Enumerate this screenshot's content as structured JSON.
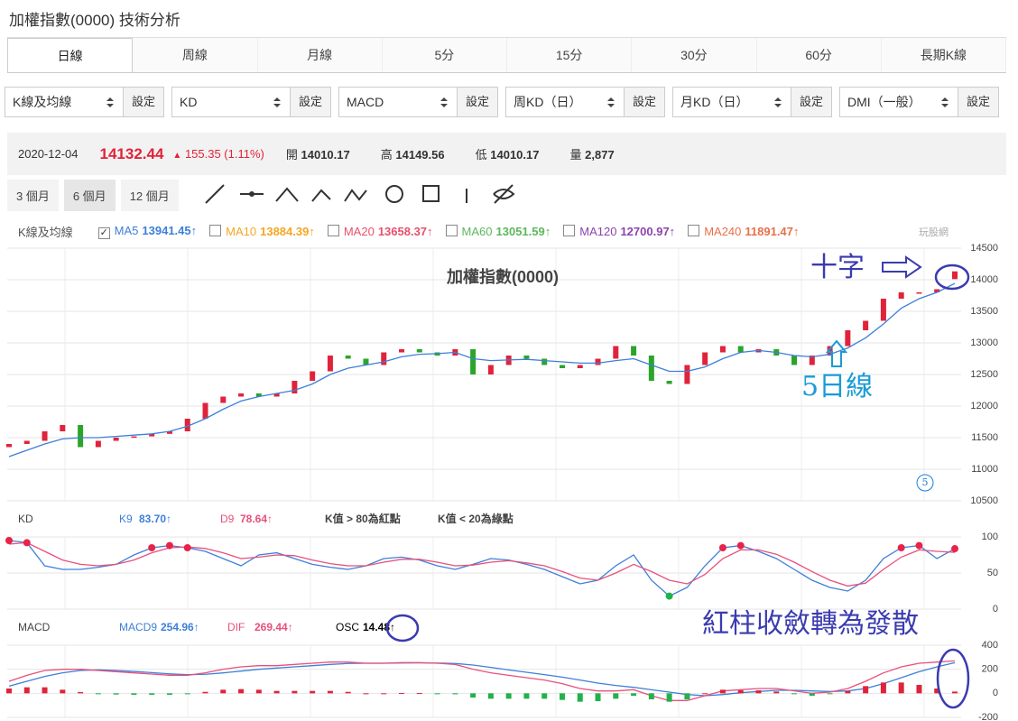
{
  "title": "加權指數(0000) 技術分析",
  "tabs": [
    "日線",
    "周線",
    "月線",
    "5分",
    "15分",
    "30分",
    "60分",
    "長期K線"
  ],
  "selectors": [
    {
      "label": "K線及均線",
      "button": "設定"
    },
    {
      "label": "KD",
      "button": "設定"
    },
    {
      "label": "MACD",
      "button": "設定"
    },
    {
      "label": "周KD（日）",
      "button": "設定"
    },
    {
      "label": "月KD（日）",
      "button": "設定"
    },
    {
      "label": "DMI（一般）",
      "button": "設定"
    }
  ],
  "quote": {
    "date": "2020-12-04",
    "price": "14132.44",
    "change": "155.35 (1.11%)",
    "open_label": "開",
    "open": "14010.17",
    "high_label": "高",
    "high": "14149.56",
    "low_label": "低",
    "low": "14010.17",
    "volume_label": "量",
    "volume": "2,877"
  },
  "periods": [
    "3 個月",
    "6 個月",
    "12 個月"
  ],
  "ma_legend": {
    "label": "K線及均線",
    "items": [
      {
        "name": "MA5",
        "value": "13941.45↑",
        "color": "#3d7fd9",
        "checked": true
      },
      {
        "name": "MA10",
        "value": "13884.39↑",
        "color": "#f5a623",
        "checked": false
      },
      {
        "name": "MA20",
        "value": "13658.37↑",
        "color": "#e8506a",
        "checked": false
      },
      {
        "name": "MA60",
        "value": "13051.59↑",
        "color": "#5cb85c",
        "checked": false
      },
      {
        "name": "MA120",
        "value": "12700.97↑",
        "color": "#8e44ad",
        "checked": false
      },
      {
        "name": "MA240",
        "value": "11891.47↑",
        "color": "#e8704a",
        "checked": false
      }
    ]
  },
  "watermark": "玩股網",
  "chart_data": [
    {
      "type": "candlestick",
      "title": "加權指數(0000)",
      "up_color": "#e0233a",
      "down_color": "#2aa52a",
      "open": [
        11350,
        11400,
        11450,
        11600,
        11700,
        11350,
        11450,
        11500,
        11520,
        11560,
        11600,
        11800,
        12050,
        12150,
        12200,
        12150,
        12200,
        12400,
        12550,
        12800,
        12750,
        12650,
        12850,
        12900,
        12850,
        12800,
        12900,
        12500,
        12650,
        12800,
        12750,
        12650,
        12600,
        12650,
        12750,
        12950,
        12800,
        12400,
        12350,
        12650,
        12850,
        12950,
        12850,
        12900,
        12800,
        12650,
        12800,
        12950,
        13200,
        13350,
        13700,
        13800,
        13800,
        14010.17
      ],
      "close": [
        11400,
        11450,
        11600,
        11700,
        11350,
        11450,
        11500,
        11520,
        11560,
        11600,
        11800,
        12050,
        12150,
        12200,
        12150,
        12200,
        12400,
        12550,
        12800,
        12750,
        12650,
        12850,
        12900,
        12850,
        12800,
        12900,
        12500,
        12650,
        12800,
        12750,
        12650,
        12600,
        12650,
        12750,
        12950,
        12800,
        12400,
        12350,
        12650,
        12850,
        12950,
        12850,
        12900,
        12800,
        12650,
        12800,
        12950,
        13200,
        13350,
        13700,
        13800,
        13800,
        13850,
        14132.44
      ],
      "series": [
        {
          "color": "#3d7fd9",
          "values": [
            11200,
            11300,
            11400,
            11480,
            11500,
            11500,
            11520,
            11540,
            11560,
            11600,
            11680,
            11800,
            11950,
            12080,
            12150,
            12200,
            12250,
            12350,
            12500,
            12600,
            12650,
            12700,
            12780,
            12820,
            12830,
            12850,
            12750,
            12720,
            12730,
            12740,
            12720,
            12700,
            12680,
            12680,
            12720,
            12750,
            12650,
            12550,
            12550,
            12620,
            12750,
            12850,
            12880,
            12850,
            12800,
            12780,
            12820,
            12920,
            13080,
            13300,
            13550,
            13700,
            13800,
            13941.45
          ]
        }
      ],
      "ylim": [
        10500,
        14500
      ],
      "yticks": [
        10500,
        11000,
        11500,
        12000,
        12500,
        13000,
        13500,
        14000,
        14500
      ],
      "grid": true,
      "annotations": [
        "十字",
        "5日線",
        "5"
      ]
    },
    {
      "type": "line",
      "title": "KD",
      "high_dot": 80,
      "low_dot": 20,
      "notes": [
        "K值 > 80為紅點",
        "K值 < 20為綠點"
      ],
      "series": [
        {
          "name": "K9",
          "label": "83.70↑",
          "color": "#3d7fd9",
          "values": [
            95,
            92,
            60,
            55,
            55,
            58,
            62,
            75,
            85,
            88,
            85,
            80,
            70,
            60,
            75,
            78,
            70,
            62,
            58,
            55,
            60,
            70,
            72,
            68,
            60,
            55,
            62,
            70,
            68,
            62,
            55,
            45,
            35,
            40,
            60,
            75,
            40,
            18,
            30,
            60,
            85,
            88,
            80,
            70,
            55,
            40,
            30,
            25,
            40,
            70,
            85,
            88,
            70,
            83.7
          ]
        },
        {
          "name": "D9",
          "label": "78.64↑",
          "color": "#e8507a",
          "values": [
            90,
            92,
            80,
            68,
            62,
            60,
            62,
            68,
            78,
            85,
            86,
            84,
            78,
            70,
            72,
            75,
            74,
            68,
            63,
            60,
            60,
            65,
            69,
            69,
            65,
            60,
            61,
            65,
            67,
            64,
            60,
            52,
            43,
            40,
            50,
            62,
            52,
            40,
            35,
            48,
            70,
            82,
            82,
            76,
            65,
            52,
            40,
            32,
            36,
            55,
            72,
            82,
            80,
            78.64
          ]
        }
      ],
      "ylim": [
        0,
        100
      ],
      "yticks": [
        0,
        50,
        100
      ],
      "grid": true
    },
    {
      "type": "macd",
      "title": "MACD",
      "annotation": "紅柱收斂轉為發散",
      "series": [
        {
          "name": "MACD9",
          "label": "254.96↑",
          "color": "#3d7fd9",
          "values": [
            60,
            100,
            140,
            170,
            190,
            195,
            190,
            182,
            172,
            162,
            155,
            158,
            170,
            185,
            200,
            210,
            220,
            230,
            240,
            248,
            250,
            250,
            252,
            253,
            252,
            248,
            235,
            215,
            195,
            175,
            155,
            135,
            110,
            85,
            65,
            50,
            30,
            10,
            -10,
            -20,
            -10,
            5,
            15,
            25,
            25,
            20,
            15,
            20,
            40,
            80,
            130,
            180,
            220,
            254.96
          ]
        },
        {
          "name": "DIF",
          "label": "269.44↑",
          "color": "#e8507a",
          "values": [
            100,
            150,
            190,
            200,
            200,
            190,
            180,
            170,
            160,
            150,
            150,
            170,
            200,
            220,
            230,
            230,
            240,
            250,
            260,
            260,
            250,
            250,
            255,
            255,
            250,
            240,
            200,
            170,
            150,
            130,
            110,
            80,
            40,
            20,
            20,
            30,
            -20,
            -60,
            -60,
            -20,
            20,
            30,
            40,
            40,
            20,
            0,
            10,
            40,
            100,
            170,
            220,
            250,
            260,
            269.44
          ]
        },
        {
          "name": "OSC",
          "label": "14.48↑",
          "type": "bar",
          "up_color": "#e0233a",
          "down_color": "#22b14c",
          "values": [
            40,
            50,
            50,
            30,
            10,
            -5,
            -10,
            -12,
            -12,
            -12,
            -5,
            12,
            30,
            35,
            30,
            20,
            20,
            20,
            20,
            12,
            0,
            0,
            3,
            2,
            -2,
            -8,
            -35,
            -45,
            -45,
            -45,
            -45,
            -55,
            -70,
            -65,
            -45,
            -20,
            -50,
            -70,
            -50,
            0,
            30,
            25,
            25,
            15,
            -5,
            -20,
            -5,
            20,
            60,
            90,
            90,
            70,
            40,
            14.48
          ]
        }
      ],
      "ylim": [
        -200,
        400
      ],
      "yticks": [
        -200,
        0,
        200,
        400
      ],
      "grid": true
    }
  ]
}
